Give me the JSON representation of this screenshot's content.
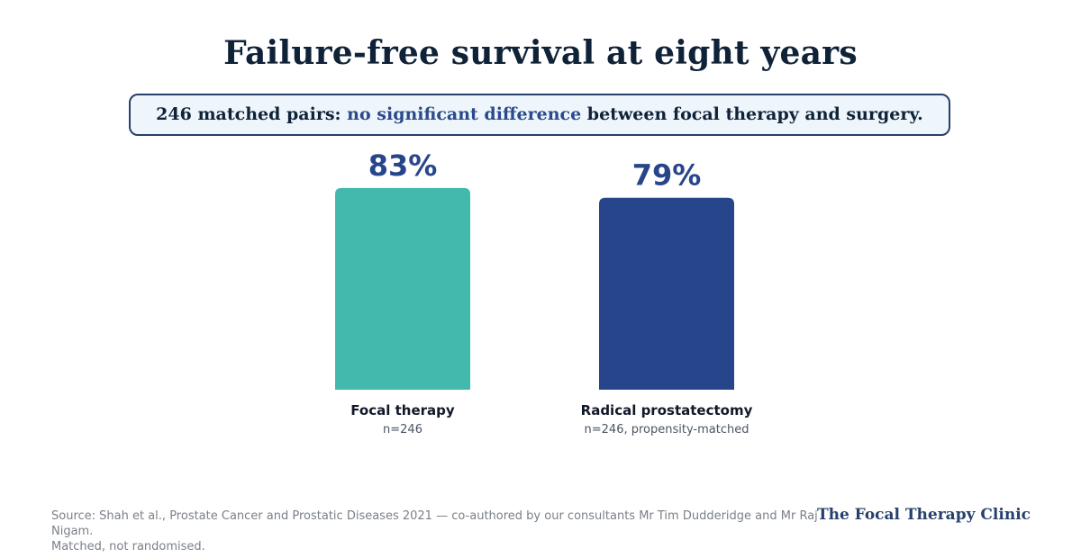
{
  "title": "Failure-free survival at eight years",
  "callout": {
    "prefix": "246 matched pairs: ",
    "highlight": "no significant difference",
    "suffix": " between focal therapy and surgery."
  },
  "chart_data": {
    "type": "bar",
    "categories": [
      "Focal therapy",
      "Radical prostatectomy"
    ],
    "subtitles": [
      "n=246",
      "n=246, propensity-matched"
    ],
    "values": [
      83,
      79
    ],
    "value_labels": [
      "83%",
      "79%"
    ],
    "colors": [
      "#43b8ad",
      "#27458a"
    ],
    "ylim": [
      0,
      100
    ],
    "grid": false
  },
  "footer": {
    "source_line1": "Source: Shah et al., Prostate Cancer and Prostatic Diseases 2021 — co-authored by our consultants Mr Tim Dudderidge and Mr Raj Nigam.",
    "source_line2": "Matched, not randomised.",
    "brand": "The Focal Therapy Clinic"
  }
}
